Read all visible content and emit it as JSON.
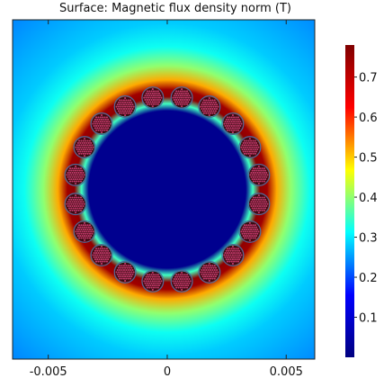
{
  "chart_data": {
    "type": "heatmap",
    "title": "Surface: Magnetic flux density norm (T)",
    "xlabel": "",
    "ylabel": "",
    "x_ticks": [
      {
        "value": -0.005,
        "label": "-0.005"
      },
      {
        "value": 0,
        "label": "0"
      },
      {
        "value": 0.005,
        "label": "0.005"
      }
    ],
    "xlim": [
      -0.0065,
      0.0062
    ],
    "ylim": [
      -0.0065,
      0.0065
    ],
    "grid": false,
    "colorbar": {
      "min": 0.0,
      "max": 0.78,
      "ticks": [
        {
          "value": 0.1,
          "label": "0.1"
        },
        {
          "value": 0.2,
          "label": "0.2"
        },
        {
          "value": 0.3,
          "label": "0.3"
        },
        {
          "value": 0.4,
          "label": "0.4"
        },
        {
          "value": 0.5,
          "label": "0.5"
        },
        {
          "value": 0.6,
          "label": "0.6"
        },
        {
          "value": 0.7,
          "label": "0.7"
        }
      ],
      "colormap": [
        "#00007f",
        "#0000ff",
        "#00ffff",
        "#ffff00",
        "#ff0000",
        "#7f0000"
      ]
    },
    "field": {
      "inner_region_value": 0.02,
      "inner_radius": 0.0033,
      "ring_radius": 0.0039,
      "ring_peak_value": 0.76,
      "far_field_value": 0.28,
      "conductor_count": 20,
      "conductor_radius": 0.00045
    },
    "colors": {
      "conductor_edge": "#4a6a9a",
      "strand_dots": "#c23a6a"
    }
  }
}
